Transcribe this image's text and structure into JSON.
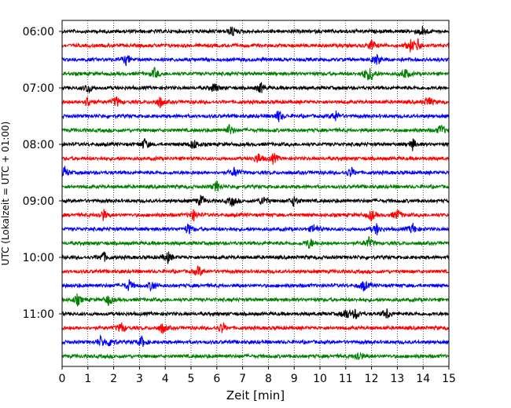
{
  "chart_data": {
    "type": "line",
    "subtype": "helicorder",
    "xlabel": "Zeit  [min]",
    "ylabel": "UTC (Lokalzeit = UTC + 01:00)",
    "xlim": [
      0,
      15
    ],
    "x_ticks": [
      "0",
      "1",
      "2",
      "3",
      "4",
      "5",
      "6",
      "7",
      "8",
      "9",
      "10",
      "11",
      "12",
      "13",
      "14",
      "15"
    ],
    "y_tick_labels": [
      "06:00",
      "07:00",
      "08:00",
      "09:00",
      "10:00",
      "11:00"
    ],
    "grid": "vertical dotted lines at each minute",
    "legend": "none",
    "minutes_per_line": 15,
    "trace_colors": [
      "#000000",
      "#ff0000",
      "#0000ff",
      "#008000"
    ],
    "traces": [
      {
        "start": "06:00",
        "color": "#000000",
        "events_min": [
          6.6,
          14.0
        ]
      },
      {
        "start": "06:15",
        "color": "#ff0000",
        "events_min": [
          12.0,
          13.5,
          13.8
        ]
      },
      {
        "start": "06:30",
        "color": "#0000ff",
        "events_min": [
          2.5,
          12.2
        ]
      },
      {
        "start": "06:45",
        "color": "#008000",
        "events_min": [
          3.6,
          11.8,
          12.0,
          13.3
        ]
      },
      {
        "start": "07:00",
        "color": "#000000",
        "events_min": [
          1.0,
          5.9,
          7.7
        ]
      },
      {
        "start": "07:15",
        "color": "#ff0000",
        "events_min": [
          1.0,
          2.1,
          3.8,
          14.2
        ]
      },
      {
        "start": "07:30",
        "color": "#0000ff",
        "events_min": [
          8.4,
          10.6
        ]
      },
      {
        "start": "07:45",
        "color": "#008000",
        "events_min": [
          6.5,
          14.7
        ]
      },
      {
        "start": "08:00",
        "color": "#000000",
        "events_min": [
          3.2,
          5.1,
          13.6
        ]
      },
      {
        "start": "08:15",
        "color": "#ff0000",
        "events_min": [
          7.6,
          8.2
        ]
      },
      {
        "start": "08:30",
        "color": "#0000ff",
        "events_min": [
          0.1,
          6.7,
          11.2
        ]
      },
      {
        "start": "08:45",
        "color": "#008000",
        "events_min": [
          6.0
        ]
      },
      {
        "start": "09:00",
        "color": "#000000",
        "events_min": [
          5.4,
          6.6,
          7.8,
          9.0
        ]
      },
      {
        "start": "09:15",
        "color": "#ff0000",
        "events_min": [
          1.6,
          5.1,
          12.0,
          13.0
        ]
      },
      {
        "start": "09:30",
        "color": "#0000ff",
        "events_min": [
          4.9,
          9.8,
          12.2,
          13.6
        ]
      },
      {
        "start": "09:45",
        "color": "#008000",
        "events_min": [
          9.6,
          11.9
        ]
      },
      {
        "start": "10:00",
        "color": "#000000",
        "events_min": [
          1.6,
          4.1
        ]
      },
      {
        "start": "10:15",
        "color": "#ff0000",
        "events_min": [
          5.3
        ]
      },
      {
        "start": "10:30",
        "color": "#0000ff",
        "events_min": [
          2.6,
          3.5,
          11.7
        ]
      },
      {
        "start": "10:45",
        "color": "#008000",
        "events_min": [
          0.6,
          1.8
        ]
      },
      {
        "start": "11:00",
        "color": "#000000",
        "events_min": [
          11.0,
          11.4,
          12.6
        ]
      },
      {
        "start": "11:15",
        "color": "#ff0000",
        "events_min": [
          2.3,
          3.9,
          6.2
        ]
      },
      {
        "start": "11:30",
        "color": "#0000ff",
        "events_min": [
          1.5,
          1.9,
          3.1
        ]
      },
      {
        "start": "11:45",
        "color": "#008000",
        "events_min": [
          11.5
        ]
      }
    ]
  }
}
